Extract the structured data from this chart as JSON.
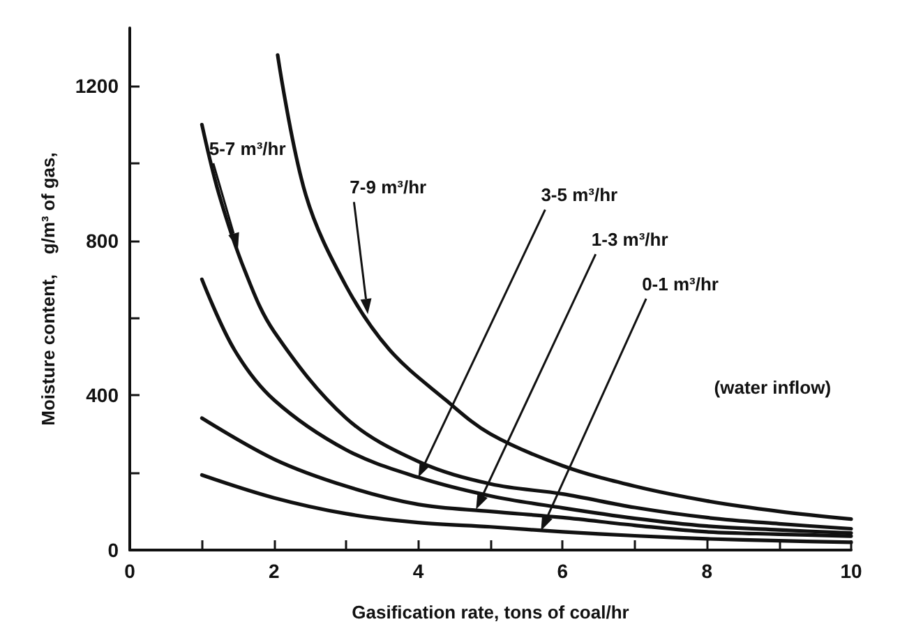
{
  "chart_data": {
    "type": "line",
    "xlabel": "Gasification rate, tons of coal/hr",
    "ylabel": "Moisture content,    g/m³ of gas,",
    "xlim": [
      0,
      10
    ],
    "ylim": [
      0,
      1350
    ],
    "xticks": [
      0,
      {
        "value": 1,
        "label": null
      },
      2,
      {
        "value": 3,
        "label": null
      },
      4,
      {
        "value": 5,
        "label": null
      },
      6,
      {
        "value": 7,
        "label": null
      },
      8,
      {
        "value": 9,
        "label": null
      },
      10
    ],
    "yticks": [
      0,
      {
        "value": 200,
        "label": null
      },
      400,
      {
        "value": 600,
        "label": null
      },
      800,
      {
        "value": 1000,
        "label": null
      },
      1200
    ],
    "grid": false,
    "legend": false,
    "marker": "none",
    "line_style": "solid",
    "series": [
      {
        "name": "7-9 m³/hr",
        "color": "#111111",
        "x": [
          2.05,
          2.44,
          3.0,
          3.6,
          4.38,
          5,
          6,
          7,
          8,
          9,
          10
        ],
        "values": [
          1280,
          918,
          682,
          518,
          388,
          300,
          218,
          165,
          127,
          100,
          80
        ]
      },
      {
        "name": "5-7 m³/hr",
        "color": "#111111",
        "x": [
          1,
          1.24,
          1.6,
          2,
          3,
          4,
          5,
          6,
          7,
          8,
          9,
          10
        ],
        "values": [
          1100,
          918,
          720,
          565,
          341,
          229,
          171,
          145,
          110,
          84,
          68,
          55
        ]
      },
      {
        "name": "3-5 m³/hr",
        "color": "#111111",
        "x": [
          1,
          1.45,
          2,
          3,
          4,
          5,
          6,
          7,
          8,
          9,
          10
        ],
        "values": [
          700,
          518,
          388,
          259,
          188,
          140,
          109,
          82,
          62,
          52,
          44
        ]
      },
      {
        "name": "1-3 m³/hr",
        "color": "#111111",
        "x": [
          1,
          2,
          3,
          4,
          5,
          6,
          7,
          8,
          9,
          10
        ],
        "values": [
          341,
          235,
          165,
          118,
          100,
          84,
          64,
          47,
          41,
          36
        ]
      },
      {
        "name": "0-1 m³/hr",
        "color": "#111111",
        "x": [
          1,
          2,
          3,
          4,
          5,
          6,
          7,
          8,
          9,
          10
        ],
        "values": [
          194,
          135,
          94,
          71,
          60,
          47,
          37,
          29,
          24,
          20
        ]
      }
    ],
    "annotations": [
      "(water inflow)"
    ]
  }
}
